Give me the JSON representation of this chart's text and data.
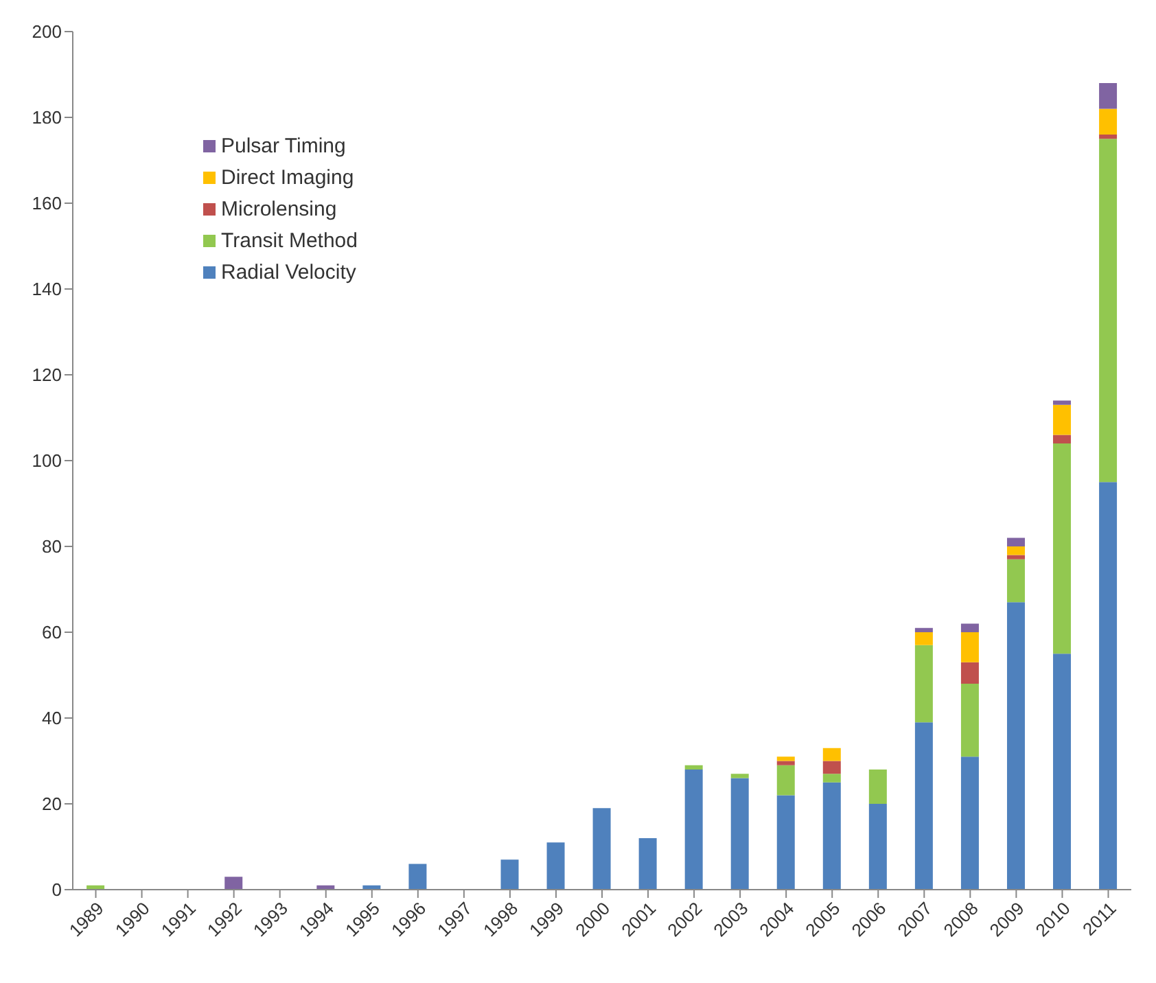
{
  "chart_data": {
    "type": "bar",
    "stacked": true,
    "categories": [
      "1989",
      "1990",
      "1991",
      "1992",
      "1993",
      "1994",
      "1995",
      "1996",
      "1997",
      "1998",
      "1999",
      "2000",
      "2001",
      "2002",
      "2003",
      "2004",
      "2005",
      "2006",
      "2007",
      "2008",
      "2009",
      "2010",
      "2011"
    ],
    "series": [
      {
        "name": "Radial Velocity",
        "color": "#4f81bd",
        "values": [
          0,
          0,
          0,
          0,
          0,
          0,
          1,
          6,
          0,
          7,
          11,
          19,
          12,
          28,
          26,
          22,
          25,
          20,
          39,
          31,
          67,
          55,
          95
        ]
      },
      {
        "name": "Transit Method",
        "color": "#92c850",
        "values": [
          1,
          0,
          0,
          0,
          0,
          0,
          0,
          0,
          0,
          0,
          0,
          0,
          0,
          1,
          1,
          7,
          2,
          8,
          18,
          17,
          10,
          49,
          80
        ]
      },
      {
        "name": "Microlensing",
        "color": "#c0504d",
        "values": [
          0,
          0,
          0,
          0,
          0,
          0,
          0,
          0,
          0,
          0,
          0,
          0,
          0,
          0,
          0,
          1,
          3,
          0,
          0,
          5,
          1,
          2,
          1
        ]
      },
      {
        "name": "Direct Imaging",
        "color": "#ffc000",
        "values": [
          0,
          0,
          0,
          0,
          0,
          0,
          0,
          0,
          0,
          0,
          0,
          0,
          0,
          0,
          0,
          1,
          3,
          0,
          3,
          7,
          2,
          7,
          6
        ]
      },
      {
        "name": "Pulsar Timing",
        "color": "#8064a2",
        "values": [
          0,
          0,
          0,
          3,
          0,
          1,
          0,
          0,
          0,
          0,
          0,
          0,
          0,
          0,
          0,
          0,
          0,
          0,
          1,
          2,
          2,
          1,
          6
        ]
      }
    ],
    "ylim": [
      0,
      200
    ],
    "yticks": [
      0,
      20,
      40,
      60,
      80,
      100,
      120,
      140,
      160,
      180,
      200
    ],
    "grid": false,
    "legend": "top left"
  }
}
